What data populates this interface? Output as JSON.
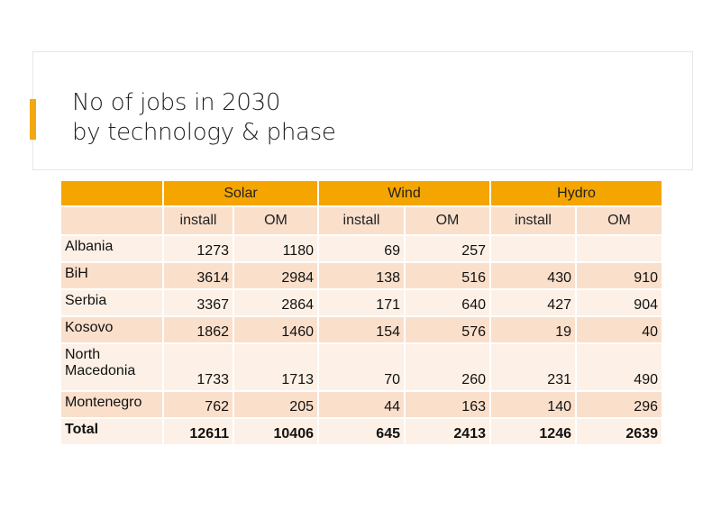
{
  "title": {
    "line1": "No of jobs in 2030",
    "line2": "by technology & phase"
  },
  "colors": {
    "accent": "#F3A712",
    "header": "#F5A500",
    "row_dark": "#FADFCB",
    "row_light": "#FDF0E6"
  },
  "table": {
    "groups": [
      "Solar",
      "Wind",
      "Hydro"
    ],
    "subheaders": [
      "install",
      "OM",
      "install",
      "OM",
      "install",
      "OM"
    ],
    "rows": [
      {
        "label": "Albania",
        "values": [
          "1273",
          "1180",
          "69",
          "257",
          "",
          ""
        ]
      },
      {
        "label": "BiH",
        "values": [
          "3614",
          "2984",
          "138",
          "516",
          "430",
          "910"
        ]
      },
      {
        "label": "Serbia",
        "values": [
          "3367",
          "2864",
          "171",
          "640",
          "427",
          "904"
        ]
      },
      {
        "label": "Kosovo",
        "values": [
          "1862",
          "1460",
          "154",
          "576",
          "19",
          "40"
        ]
      },
      {
        "label": "North Macedonia",
        "values": [
          "1733",
          "1713",
          "70",
          "260",
          "231",
          "490"
        ]
      },
      {
        "label": "Montenegro",
        "values": [
          "762",
          "205",
          "44",
          "163",
          "140",
          "296"
        ]
      }
    ],
    "total": {
      "label": "Total",
      "values": [
        "12611",
        "10406",
        "645",
        "2413",
        "1246",
        "2639"
      ]
    }
  }
}
